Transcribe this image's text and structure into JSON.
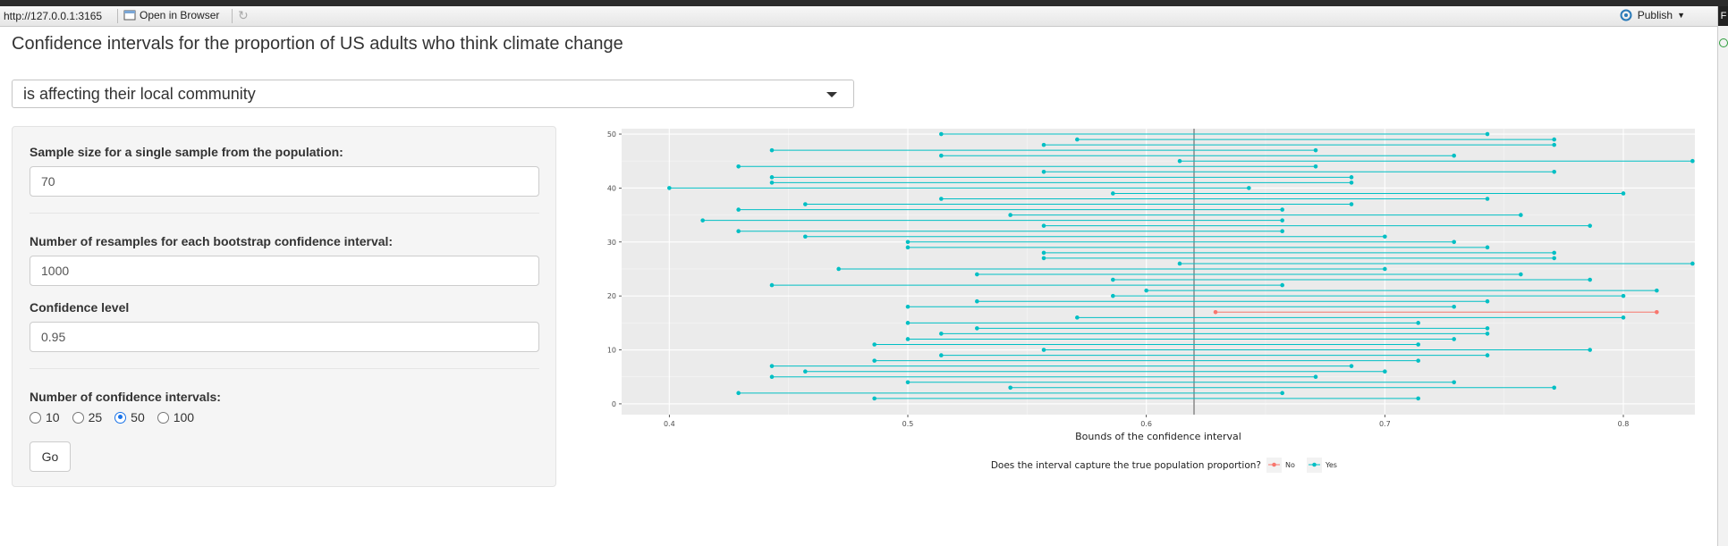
{
  "toolbar": {
    "url": "http://127.0.0.1:3165",
    "open_label": "Open in Browser",
    "publish_label": "Publish"
  },
  "edge_label": "F",
  "page_title": "Confidence intervals for the proportion of US adults who think climate change",
  "statement_select": {
    "value": "is affecting their local community"
  },
  "controls": {
    "sample_size": {
      "label": "Sample size for a single sample from the population:",
      "value": "70"
    },
    "resamples": {
      "label": "Number of resamples for each bootstrap confidence interval:",
      "value": "1000"
    },
    "confidence": {
      "label": "Confidence level",
      "value": "0.95"
    },
    "n_intervals": {
      "label": "Number of confidence intervals:",
      "options": [
        "10",
        "25",
        "50",
        "100"
      ],
      "selected": "50"
    },
    "go_label": "Go"
  },
  "colors": {
    "yes": "#00BFC4",
    "no": "#F8766D",
    "panel_bg": "#EBEBEB"
  },
  "chart_data": {
    "type": "interval",
    "xlabel": "Bounds of the confidence interval",
    "xlim": [
      0.38,
      0.83
    ],
    "ylim": [
      -2,
      51
    ],
    "x_ticks": [
      0.4,
      0.5,
      0.6,
      0.7,
      0.8
    ],
    "x_tick_labels": [
      "0.4",
      "0.5",
      "0.6",
      "0.7",
      "0.8"
    ],
    "y_ticks": [
      0,
      10,
      20,
      30,
      40,
      50
    ],
    "y_tick_labels": [
      "0",
      "10",
      "20",
      "30",
      "40",
      "50"
    ],
    "true_proportion": 0.62,
    "legend_title": "Does the interval capture the true population proportion?",
    "legend": [
      {
        "name": "No",
        "color": "#F8766D"
      },
      {
        "name": "Yes",
        "color": "#00BFC4"
      }
    ],
    "legend_position": "bottom",
    "grid": true,
    "intervals": [
      {
        "id": 1,
        "lower": 0.486,
        "upper": 0.714,
        "captured": "Yes"
      },
      {
        "id": 2,
        "lower": 0.429,
        "upper": 0.657,
        "captured": "Yes"
      },
      {
        "id": 3,
        "lower": 0.543,
        "upper": 0.771,
        "captured": "Yes"
      },
      {
        "id": 4,
        "lower": 0.5,
        "upper": 0.729,
        "captured": "Yes"
      },
      {
        "id": 5,
        "lower": 0.443,
        "upper": 0.671,
        "captured": "Yes"
      },
      {
        "id": 6,
        "lower": 0.457,
        "upper": 0.7,
        "captured": "Yes"
      },
      {
        "id": 7,
        "lower": 0.443,
        "upper": 0.686,
        "captured": "Yes"
      },
      {
        "id": 8,
        "lower": 0.486,
        "upper": 0.714,
        "captured": "Yes"
      },
      {
        "id": 9,
        "lower": 0.514,
        "upper": 0.743,
        "captured": "Yes"
      },
      {
        "id": 10,
        "lower": 0.557,
        "upper": 0.786,
        "captured": "Yes"
      },
      {
        "id": 11,
        "lower": 0.486,
        "upper": 0.714,
        "captured": "Yes"
      },
      {
        "id": 12,
        "lower": 0.5,
        "upper": 0.729,
        "captured": "Yes"
      },
      {
        "id": 13,
        "lower": 0.514,
        "upper": 0.743,
        "captured": "Yes"
      },
      {
        "id": 14,
        "lower": 0.529,
        "upper": 0.743,
        "captured": "Yes"
      },
      {
        "id": 15,
        "lower": 0.5,
        "upper": 0.714,
        "captured": "Yes"
      },
      {
        "id": 16,
        "lower": 0.571,
        "upper": 0.8,
        "captured": "Yes"
      },
      {
        "id": 17,
        "lower": 0.629,
        "upper": 0.814,
        "captured": "No"
      },
      {
        "id": 18,
        "lower": 0.5,
        "upper": 0.729,
        "captured": "Yes"
      },
      {
        "id": 19,
        "lower": 0.529,
        "upper": 0.743,
        "captured": "Yes"
      },
      {
        "id": 20,
        "lower": 0.586,
        "upper": 0.8,
        "captured": "Yes"
      },
      {
        "id": 21,
        "lower": 0.6,
        "upper": 0.814,
        "captured": "Yes"
      },
      {
        "id": 22,
        "lower": 0.443,
        "upper": 0.657,
        "captured": "Yes"
      },
      {
        "id": 23,
        "lower": 0.586,
        "upper": 0.786,
        "captured": "Yes"
      },
      {
        "id": 24,
        "lower": 0.529,
        "upper": 0.757,
        "captured": "Yes"
      },
      {
        "id": 25,
        "lower": 0.471,
        "upper": 0.7,
        "captured": "Yes"
      },
      {
        "id": 26,
        "lower": 0.614,
        "upper": 0.829,
        "captured": "Yes"
      },
      {
        "id": 27,
        "lower": 0.557,
        "upper": 0.771,
        "captured": "Yes"
      },
      {
        "id": 28,
        "lower": 0.557,
        "upper": 0.771,
        "captured": "Yes"
      },
      {
        "id": 29,
        "lower": 0.5,
        "upper": 0.743,
        "captured": "Yes"
      },
      {
        "id": 30,
        "lower": 0.5,
        "upper": 0.729,
        "captured": "Yes"
      },
      {
        "id": 31,
        "lower": 0.457,
        "upper": 0.7,
        "captured": "Yes"
      },
      {
        "id": 32,
        "lower": 0.429,
        "upper": 0.657,
        "captured": "Yes"
      },
      {
        "id": 33,
        "lower": 0.557,
        "upper": 0.786,
        "captured": "Yes"
      },
      {
        "id": 34,
        "lower": 0.414,
        "upper": 0.657,
        "captured": "Yes"
      },
      {
        "id": 35,
        "lower": 0.543,
        "upper": 0.757,
        "captured": "Yes"
      },
      {
        "id": 36,
        "lower": 0.429,
        "upper": 0.657,
        "captured": "Yes"
      },
      {
        "id": 37,
        "lower": 0.457,
        "upper": 0.686,
        "captured": "Yes"
      },
      {
        "id": 38,
        "lower": 0.514,
        "upper": 0.743,
        "captured": "Yes"
      },
      {
        "id": 39,
        "lower": 0.586,
        "upper": 0.8,
        "captured": "Yes"
      },
      {
        "id": 40,
        "lower": 0.4,
        "upper": 0.643,
        "captured": "Yes"
      },
      {
        "id": 41,
        "lower": 0.443,
        "upper": 0.686,
        "captured": "Yes"
      },
      {
        "id": 42,
        "lower": 0.443,
        "upper": 0.686,
        "captured": "Yes"
      },
      {
        "id": 43,
        "lower": 0.557,
        "upper": 0.771,
        "captured": "Yes"
      },
      {
        "id": 44,
        "lower": 0.429,
        "upper": 0.671,
        "captured": "Yes"
      },
      {
        "id": 45,
        "lower": 0.614,
        "upper": 0.829,
        "captured": "Yes"
      },
      {
        "id": 46,
        "lower": 0.514,
        "upper": 0.729,
        "captured": "Yes"
      },
      {
        "id": 47,
        "lower": 0.443,
        "upper": 0.671,
        "captured": "Yes"
      },
      {
        "id": 48,
        "lower": 0.557,
        "upper": 0.771,
        "captured": "Yes"
      },
      {
        "id": 49,
        "lower": 0.571,
        "upper": 0.771,
        "captured": "Yes"
      },
      {
        "id": 50,
        "lower": 0.514,
        "upper": 0.743,
        "captured": "Yes"
      }
    ]
  }
}
